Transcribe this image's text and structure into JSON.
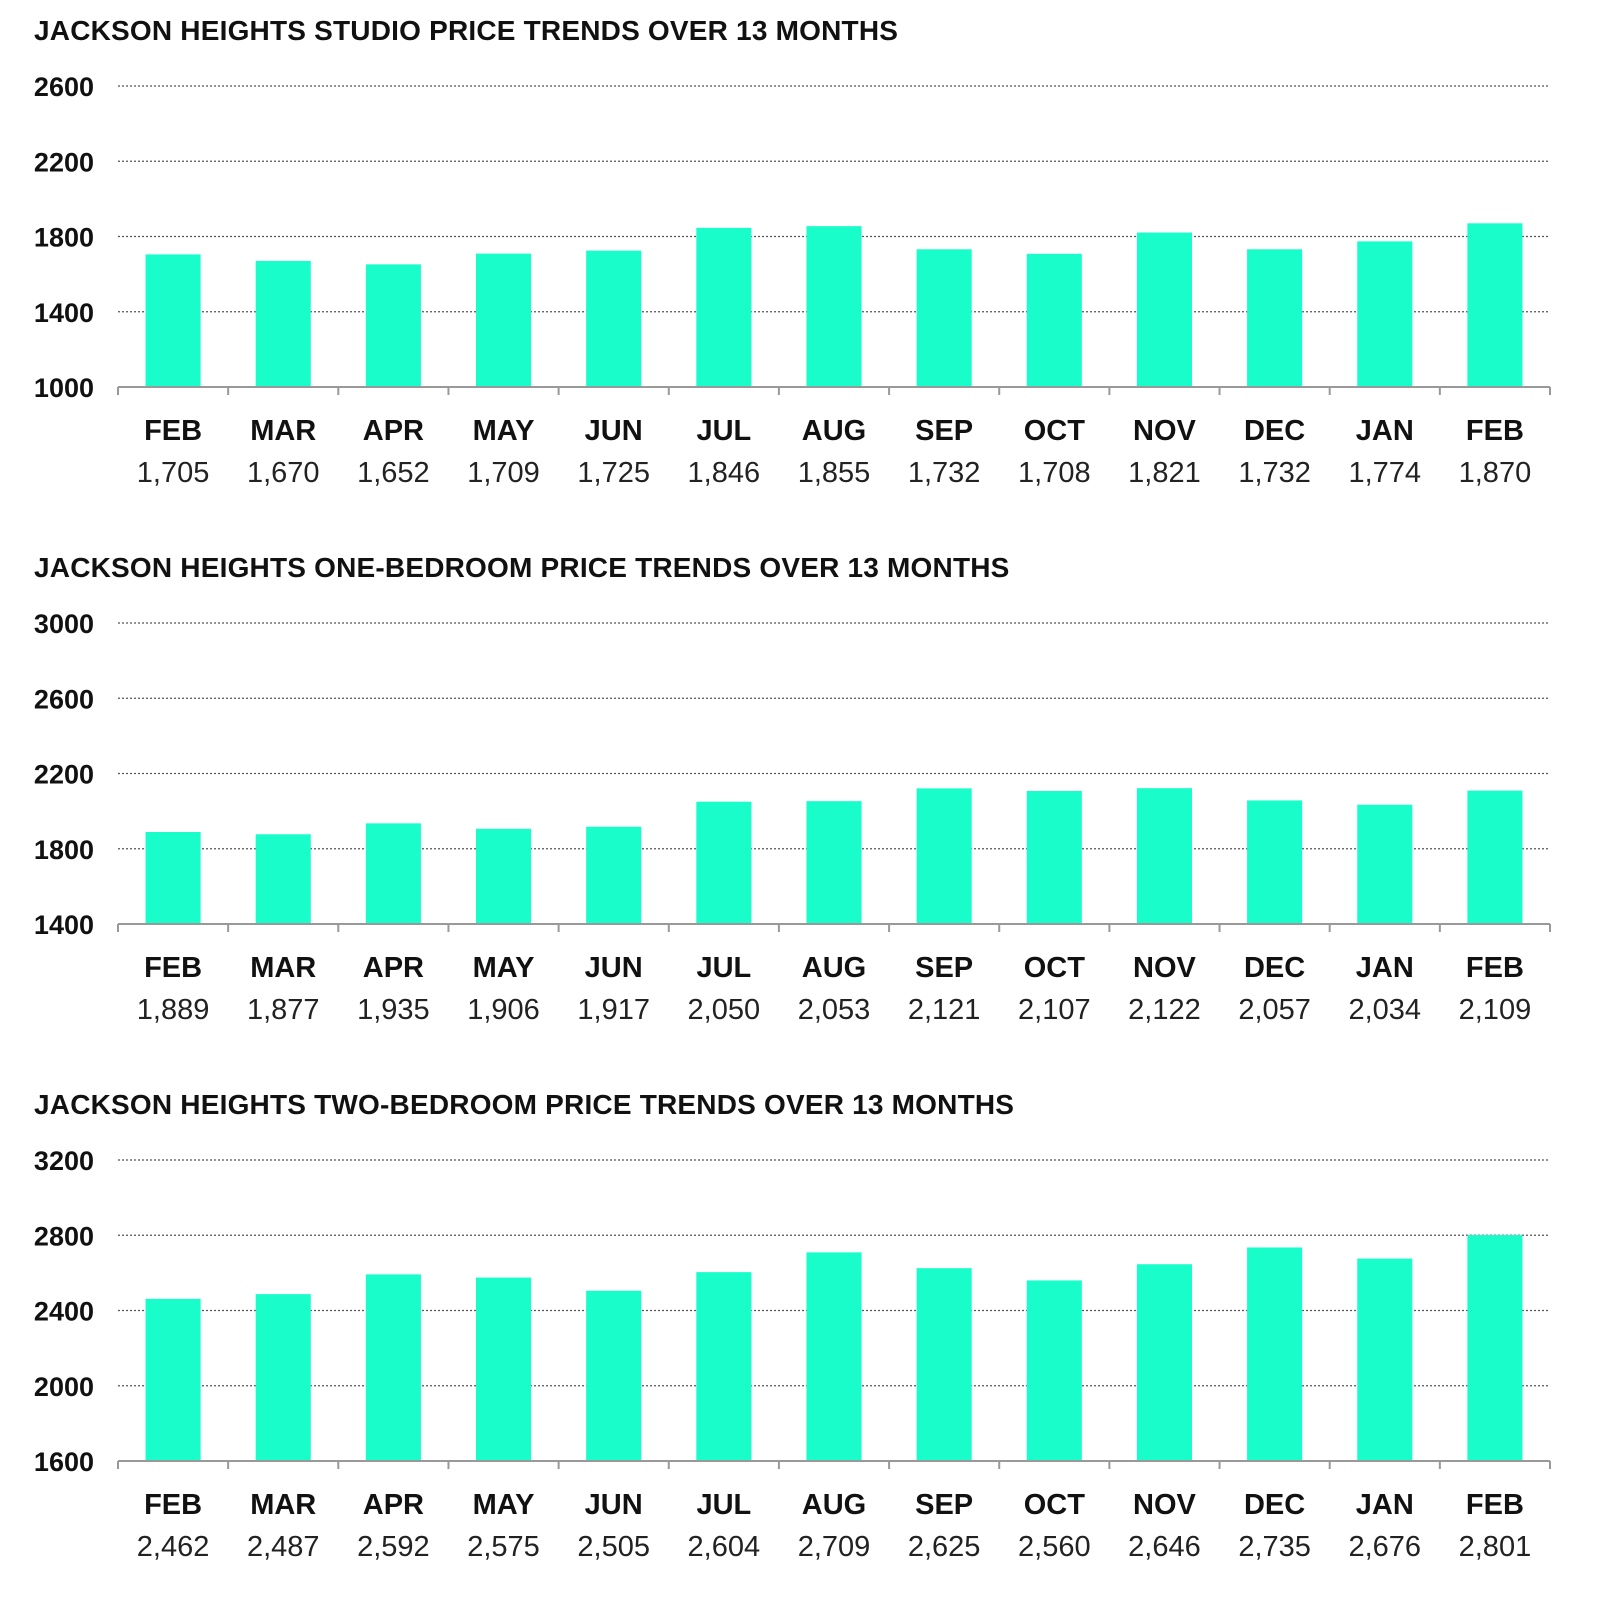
{
  "accent_color": "#19FDCB",
  "chart_data": [
    {
      "type": "bar",
      "title": "JACKSON HEIGHTS STUDIO PRICE TRENDS OVER 13 MONTHS",
      "categories": [
        "FEB",
        "MAR",
        "APR",
        "MAY",
        "JUN",
        "JUL",
        "AUG",
        "SEP",
        "OCT",
        "NOV",
        "DEC",
        "JAN",
        "FEB"
      ],
      "values": [
        1705,
        1670,
        1652,
        1709,
        1725,
        1846,
        1855,
        1732,
        1708,
        1821,
        1732,
        1774,
        1870
      ],
      "value_labels": [
        "1,705",
        "1,670",
        "1,652",
        "1,709",
        "1,725",
        "1,846",
        "1,855",
        "1,732",
        "1,708",
        "1,821",
        "1,732",
        "1,774",
        "1,870"
      ],
      "yticks": [
        1000,
        1400,
        1800,
        2200,
        2600
      ],
      "ylim": [
        1000,
        2600
      ],
      "grid": true
    },
    {
      "type": "bar",
      "title": "JACKSON HEIGHTS ONE-BEDROOM PRICE TRENDS OVER 13 MONTHS",
      "categories": [
        "FEB",
        "MAR",
        "APR",
        "MAY",
        "JUN",
        "JUL",
        "AUG",
        "SEP",
        "OCT",
        "NOV",
        "DEC",
        "JAN",
        "FEB"
      ],
      "values": [
        1889,
        1877,
        1935,
        1906,
        1917,
        2050,
        2053,
        2121,
        2107,
        2122,
        2057,
        2034,
        2109
      ],
      "value_labels": [
        "1,889",
        "1,877",
        "1,935",
        "1,906",
        "1,917",
        "2,050",
        "2,053",
        "2,121",
        "2,107",
        "2,122",
        "2,057",
        "2,034",
        "2,109"
      ],
      "yticks": [
        1400,
        1800,
        2200,
        2600,
        3000
      ],
      "ylim": [
        1400,
        3000
      ],
      "grid": true
    },
    {
      "type": "bar",
      "title": "JACKSON HEIGHTS TWO-BEDROOM PRICE TRENDS OVER 13 MONTHS",
      "categories": [
        "FEB",
        "MAR",
        "APR",
        "MAY",
        "JUN",
        "JUL",
        "AUG",
        "SEP",
        "OCT",
        "NOV",
        "DEC",
        "JAN",
        "FEB"
      ],
      "values": [
        2462,
        2487,
        2592,
        2575,
        2505,
        2604,
        2709,
        2625,
        2560,
        2646,
        2735,
        2676,
        2801
      ],
      "value_labels": [
        "2,462",
        "2,487",
        "2,592",
        "2,575",
        "2,505",
        "2,604",
        "2,709",
        "2,625",
        "2,560",
        "2,646",
        "2,735",
        "2,676",
        "2,801"
      ],
      "yticks": [
        1600,
        2000,
        2400,
        2800,
        3200
      ],
      "ylim": [
        1600,
        3200
      ],
      "grid": true
    }
  ]
}
